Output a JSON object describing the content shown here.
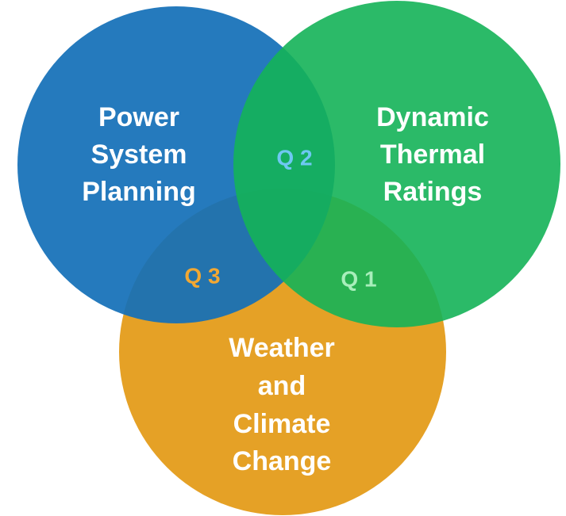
{
  "circles": [
    {
      "label": [
        "Power",
        "System",
        "Planning"
      ]
    },
    {
      "label": [
        "Dynamic",
        "Thermal",
        "Ratings"
      ]
    },
    {
      "label": [
        "Weather",
        "and",
        "Climate",
        "Change"
      ]
    }
  ],
  "overlaps": [
    "Q 2",
    "Q 3",
    "Q 1"
  ]
}
